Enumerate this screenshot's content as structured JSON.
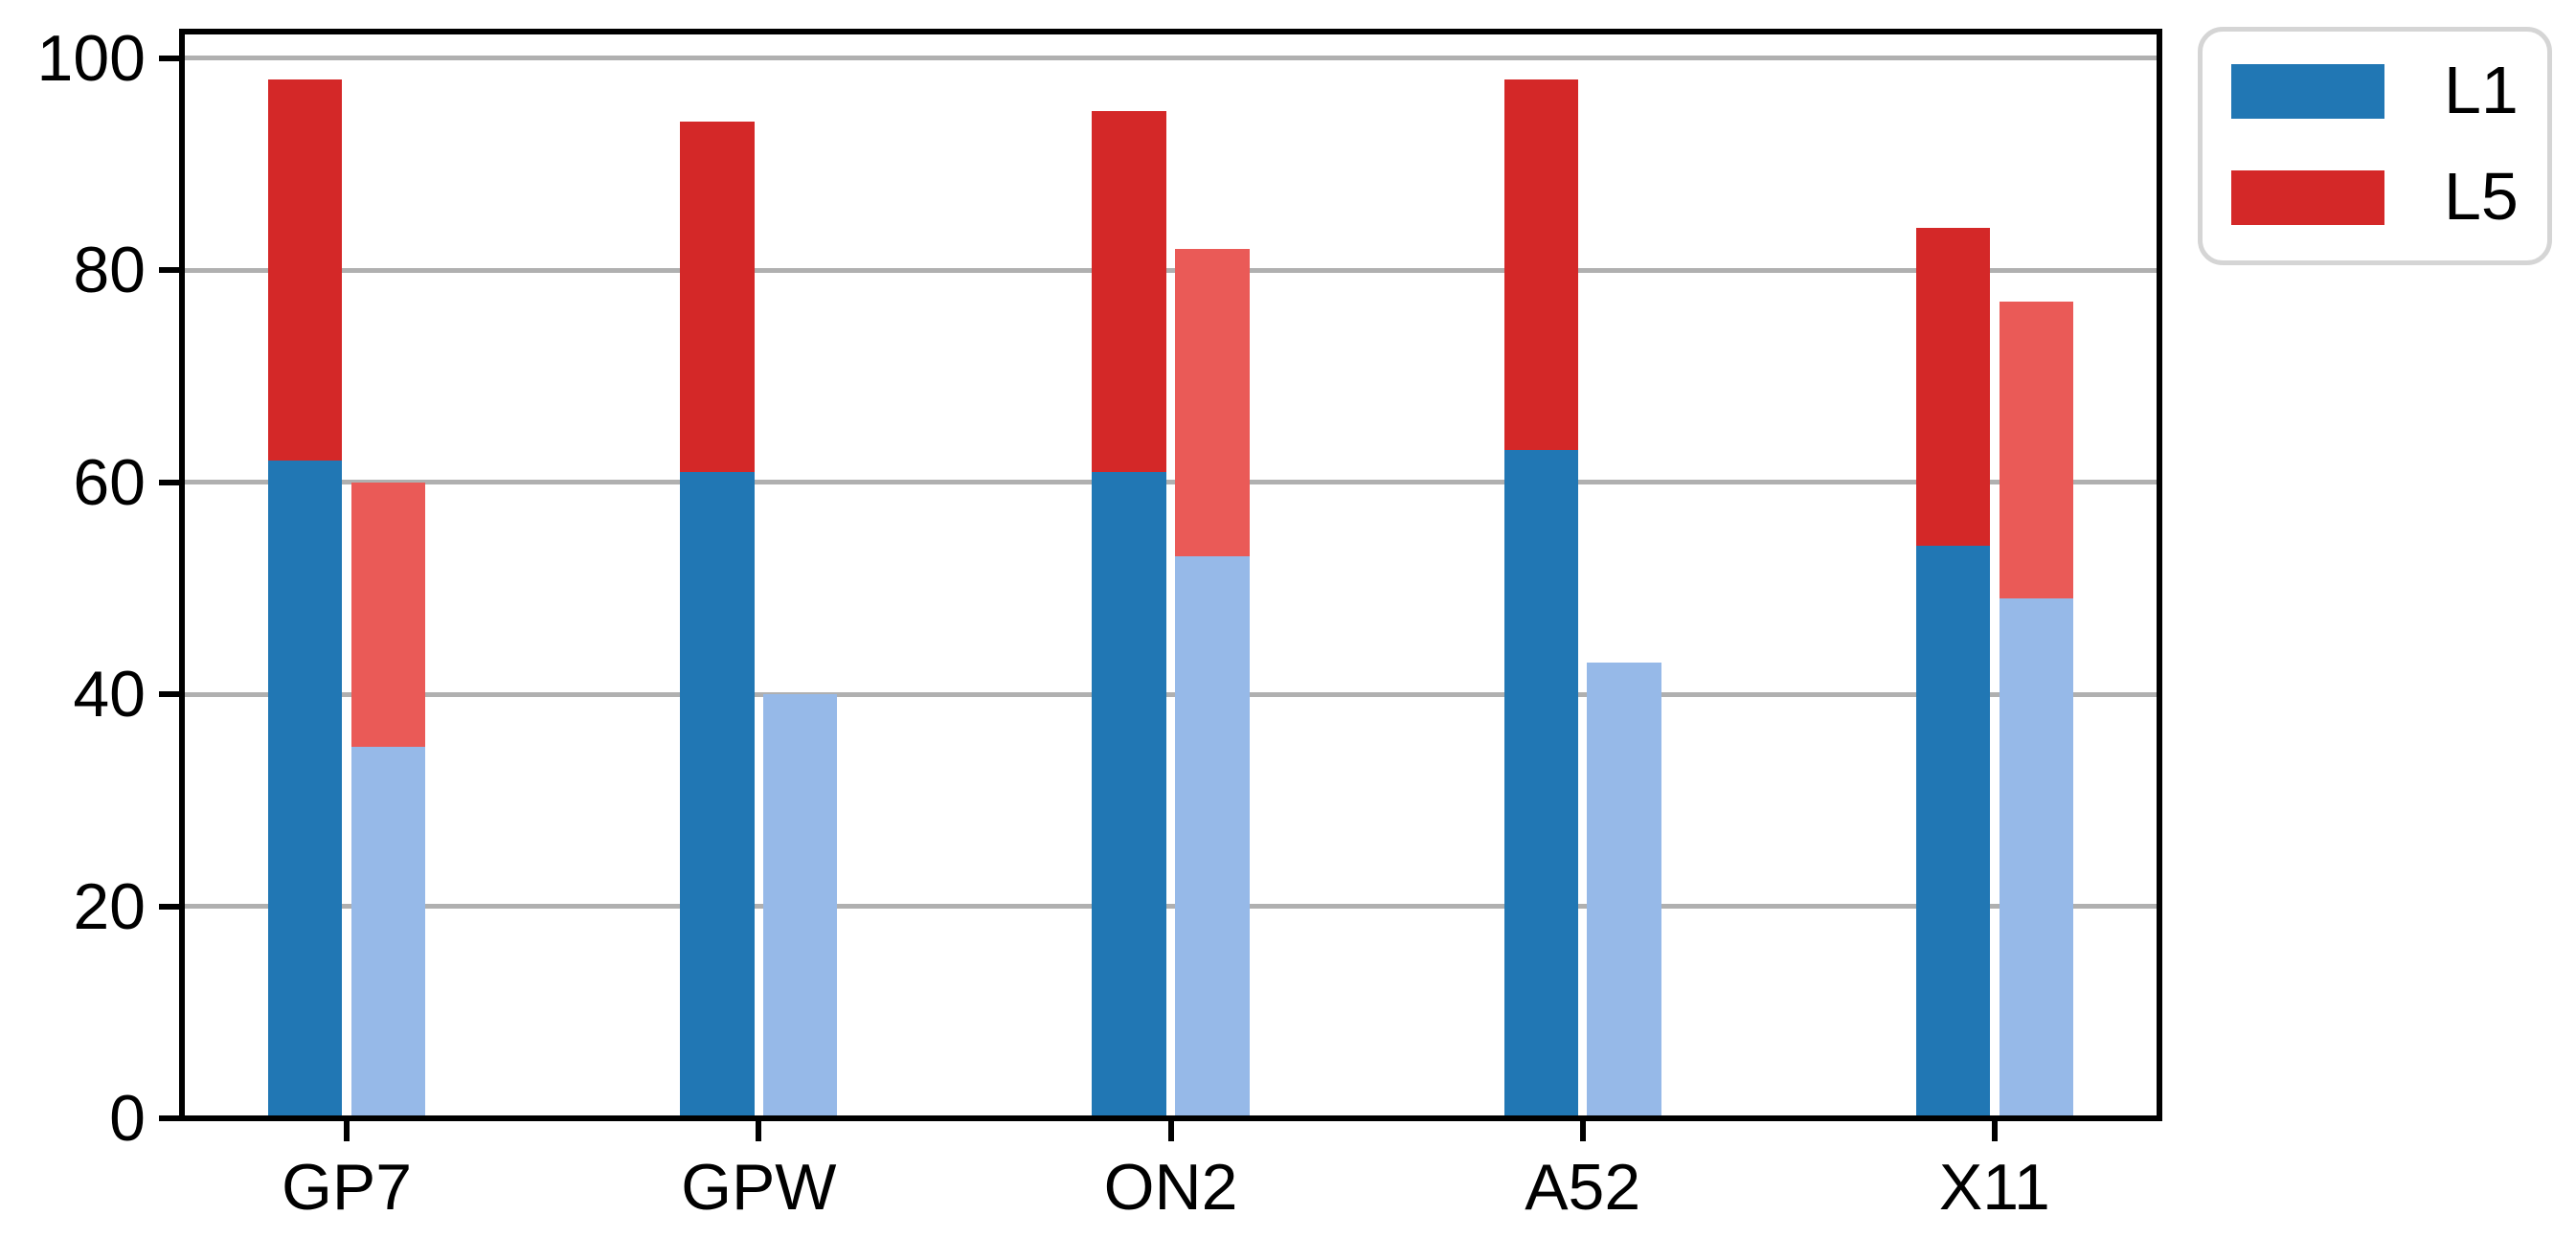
{
  "figure": {
    "background": "#ffffff",
    "gridline_color": "#b0b0b0",
    "axis_color": "#000000"
  },
  "legend": {
    "position": "upper-right-outside",
    "entries": [
      {
        "label": "L1",
        "color": "#2177b4"
      },
      {
        "label": "L5",
        "color": "#d42828"
      }
    ]
  },
  "chart_data": {
    "type": "bar",
    "variant": "grouped-stacked",
    "title": "",
    "xlabel": "",
    "ylabel": "",
    "categories": [
      "GP7",
      "GPW",
      "ON2",
      "A52",
      "X11"
    ],
    "y_ticks": [
      0,
      20,
      40,
      60,
      80,
      100
    ],
    "ylim": [
      0,
      102.5
    ],
    "grid": "horizontal",
    "groups": [
      {
        "id": "solid",
        "bar_position": "left-of-center",
        "stacks": [
          {
            "series": "L1",
            "color": "#2177b4",
            "values": [
              62,
              61,
              61,
              63,
              54
            ]
          },
          {
            "series": "L5",
            "color": "#d42828",
            "values": [
              36,
              33,
              34,
              35,
              30
            ]
          }
        ],
        "stack_totals": [
          98,
          94,
          95,
          98,
          84
        ]
      },
      {
        "id": "light",
        "bar_position": "right-of-center",
        "stacks": [
          {
            "series": "L1",
            "color": "#96b9e8",
            "values": [
              35,
              40,
              53,
              43,
              49
            ]
          },
          {
            "series": "L5",
            "color": "#ea5a57",
            "values": [
              25,
              0,
              29,
              0,
              28
            ]
          }
        ],
        "stack_totals": [
          60,
          40,
          82,
          43,
          77
        ]
      }
    ]
  }
}
